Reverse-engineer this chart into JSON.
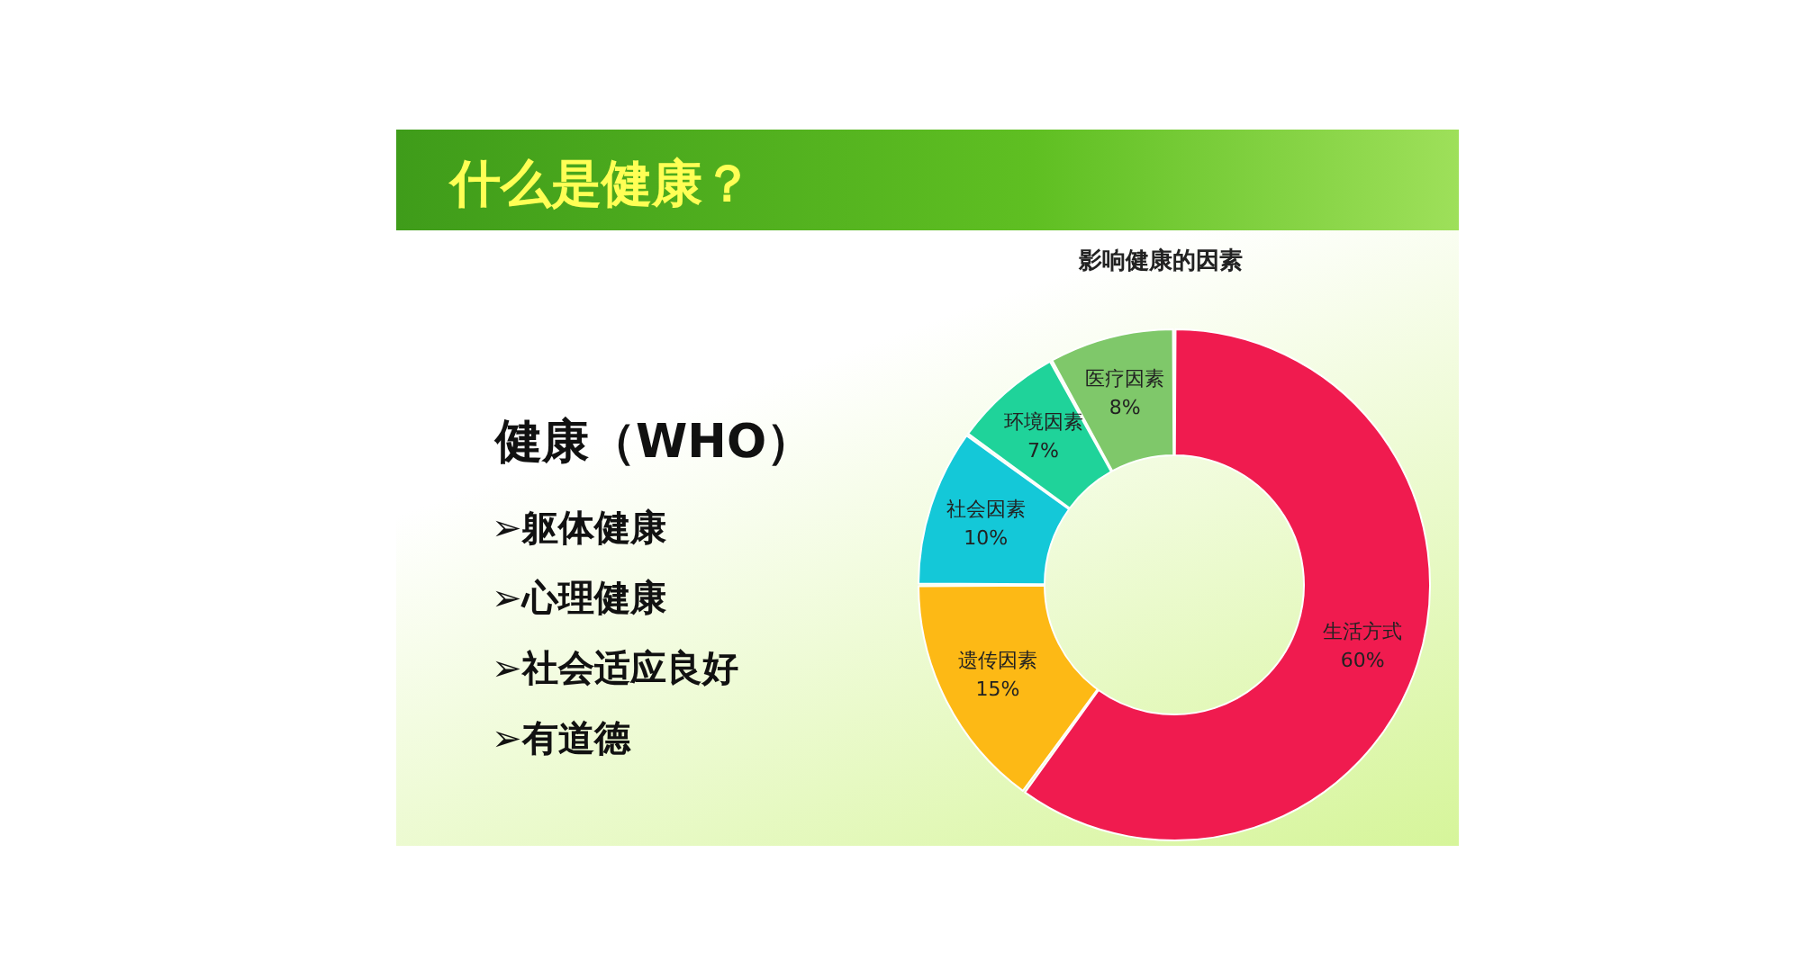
{
  "chart_data": {
    "type": "donut",
    "title": "什么是健康？",
    "subtitle": "影响健康的因素",
    "annotations": [
      "健康（WHO）",
      "➢躯体健康",
      "➢心理健康",
      "➢社会适应良好",
      "➢有道德"
    ],
    "categories": [
      "生活方式",
      "遗传因素",
      "社会因素",
      "环境因素",
      "医疗因素"
    ],
    "values": [
      60,
      15,
      10,
      7,
      8
    ],
    "value_labels": [
      "60%",
      "15%",
      "10%",
      "7%",
      "8%"
    ],
    "colors": [
      "#f01b4f",
      "#fdb915",
      "#14c8d8",
      "#1fd39a",
      "#7fc86a"
    ],
    "legend": false
  }
}
